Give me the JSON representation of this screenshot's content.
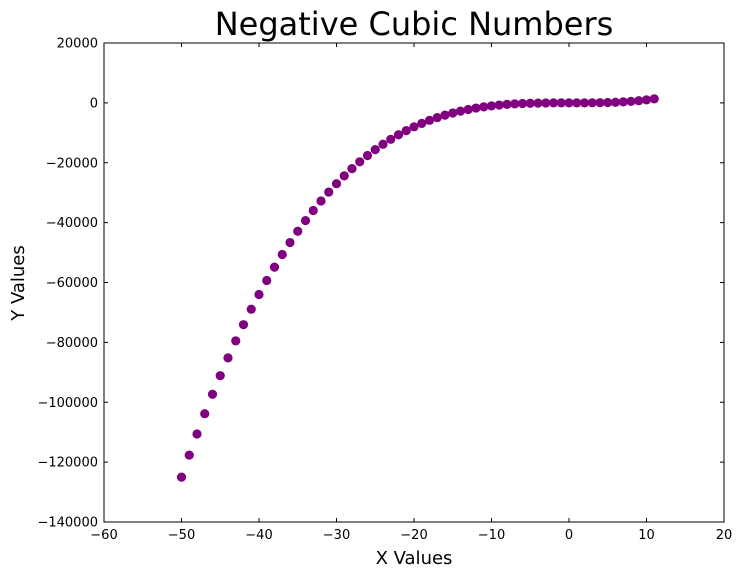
{
  "chart_data": {
    "type": "scatter",
    "title": "Negative Cubic Numbers",
    "xlabel": "X Values",
    "ylabel": "Y Values",
    "xlim": [
      -60,
      20
    ],
    "ylim": [
      -140000,
      20000
    ],
    "xticks": [
      -60,
      -50,
      -40,
      -30,
      -20,
      -10,
      0,
      10,
      20
    ],
    "yticks": [
      20000,
      0,
      -20000,
      -40000,
      -60000,
      -80000,
      -100000,
      -120000,
      -140000
    ],
    "xtick_labels": [
      "−60",
      "−50",
      "−40",
      "−30",
      "−20",
      "−10",
      "0",
      "10",
      "20"
    ],
    "ytick_labels": [
      "20000",
      "0",
      "−20000",
      "−40000",
      "−60000",
      "−80000",
      "−100000",
      "−120000",
      "−140000"
    ],
    "grid": false,
    "marker_color": "#800080",
    "x": [
      -50,
      -49,
      -48,
      -47,
      -46,
      -45,
      -44,
      -43,
      -42,
      -41,
      -40,
      -39,
      -38,
      -37,
      -36,
      -35,
      -34,
      -33,
      -32,
      -31,
      -30,
      -29,
      -28,
      -27,
      -26,
      -25,
      -24,
      -23,
      -22,
      -21,
      -20,
      -19,
      -18,
      -17,
      -16,
      -15,
      -14,
      -13,
      -12,
      -11,
      -10,
      -9,
      -8,
      -7,
      -6,
      -5,
      -4,
      -3,
      -2,
      -1,
      0,
      1,
      2,
      3,
      4,
      5,
      6,
      7,
      8,
      9,
      10,
      11
    ],
    "y": [
      -125000,
      -117649,
      -110592,
      -103823,
      -97336,
      -91125,
      -85184,
      -79507,
      -74088,
      -68921,
      -64000,
      -59319,
      -54872,
      -50653,
      -46656,
      -42875,
      -39304,
      -35937,
      -32768,
      -29791,
      -27000,
      -24389,
      -21952,
      -19683,
      -17576,
      -15625,
      -13824,
      -12167,
      -10648,
      -9261,
      -8000,
      -6859,
      -5832,
      -4913,
      -4096,
      -3375,
      -2744,
      -2197,
      -1728,
      -1331,
      -1000,
      -729,
      -512,
      -343,
      -216,
      -125,
      -64,
      -27,
      -8,
      -1,
      0,
      1,
      8,
      27,
      64,
      125,
      216,
      343,
      512,
      729,
      1000,
      1331
    ]
  }
}
